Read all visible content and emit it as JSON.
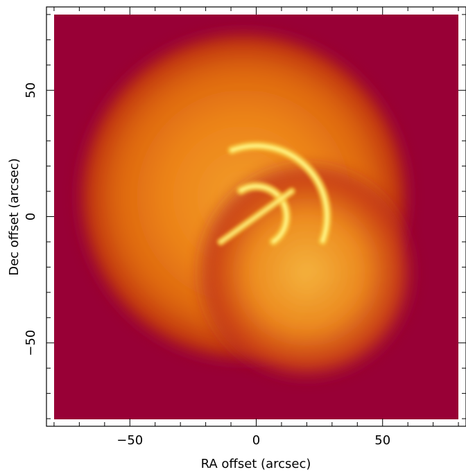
{
  "chart_data": {
    "type": "heatmap",
    "title": "",
    "xlabel": "RA offset (arcsec)",
    "ylabel": "Dec offset (arcsec)",
    "xlim": [
      -83,
      83
    ],
    "ylim": [
      -83,
      83
    ],
    "image_extent": [
      -80,
      80
    ],
    "x_ticks": [
      -50,
      0,
      50
    ],
    "y_ticks": [
      -50,
      0,
      50
    ],
    "tick_labels": {
      "x": [
        "−50",
        "0",
        "50"
      ],
      "y": [
        "−50",
        "0",
        "50"
      ]
    },
    "grid": false,
    "colormap": [
      "#960038",
      "#b0161c",
      "#d74209",
      "#f0780f",
      "#f6a52b",
      "#fff27f"
    ],
    "background_level_color": "#980036",
    "emission_components": [
      {
        "name": "",
        "shape": "disk",
        "center": [
          -5,
          8
        ],
        "radius": 64,
        "intensity": 0.7
      },
      {
        "name": "",
        "shape": "disk",
        "center": [
          20,
          -22
        ],
        "radius": 42,
        "intensity": 0.55
      },
      {
        "name": "",
        "shape": "arc",
        "center": [
          0,
          0
        ],
        "radius": 12,
        "from_deg": 120,
        "to_deg": -55,
        "intensity": 1.0
      },
      {
        "name": "",
        "shape": "arc",
        "center": [
          0,
          0
        ],
        "radius": 28,
        "from_deg": 110,
        "to_deg": -20,
        "intensity": 1.0
      },
      {
        "name": "",
        "shape": "bar",
        "from": [
          -14,
          -10
        ],
        "to": [
          14,
          10
        ],
        "intensity": 0.9
      }
    ]
  }
}
